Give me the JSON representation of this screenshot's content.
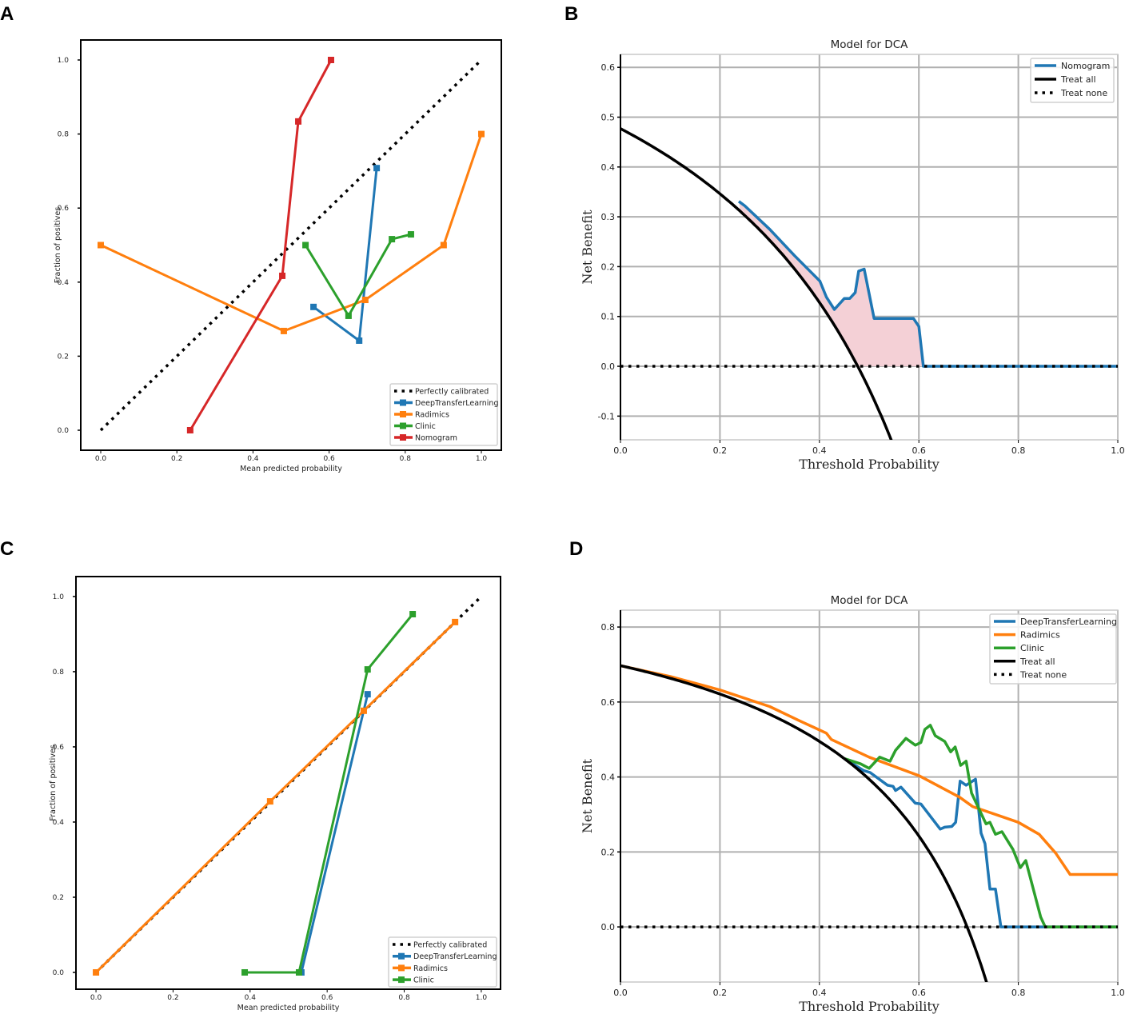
{
  "chart_data": [
    {
      "panel_label": "A",
      "type": "line",
      "title": "",
      "xlabel": "Mean predicted probability",
      "ylabel": "Fraction of positives",
      "xlim": [
        -0.0525,
        1.0525
      ],
      "ylim": [
        -0.054,
        1.054
      ],
      "xticks": [
        0.0,
        0.2,
        0.4,
        0.6,
        0.8,
        1.0
      ],
      "yticks": [
        0.0,
        0.2,
        0.4,
        0.6,
        0.8,
        1.0
      ],
      "grid": false,
      "legend": "lower-right",
      "series": [
        {
          "name": "Perfectly calibrated",
          "color": "#000000",
          "style": "dotted",
          "marker": "none",
          "x": [
            0,
            1
          ],
          "y": [
            0,
            1
          ]
        },
        {
          "name": "DeepTransferLearning",
          "color": "#1f77b4",
          "style": "solid",
          "marker": "square",
          "x": [
            0.559,
            0.679,
            0.725
          ],
          "y": [
            0.333,
            0.242,
            0.708
          ]
        },
        {
          "name": "Radimics",
          "color": "#ff7f0e",
          "style": "solid",
          "marker": "square",
          "x": [
            0.0,
            0.481,
            0.695,
            0.901,
            1.0
          ],
          "y": [
            0.5,
            0.268,
            0.352,
            0.5,
            0.8
          ]
        },
        {
          "name": "Clinic",
          "color": "#2ca02c",
          "style": "solid",
          "marker": "square",
          "x": [
            0.538,
            0.651,
            0.765,
            0.815
          ],
          "y": [
            0.5,
            0.309,
            0.516,
            0.529
          ]
        },
        {
          "name": "Nomogram",
          "color": "#d62728",
          "style": "solid",
          "marker": "square",
          "x": [
            0.235,
            0.477,
            0.519,
            0.605
          ],
          "y": [
            0.0,
            0.417,
            0.834,
            1.0
          ]
        }
      ]
    },
    {
      "panel_label": "B",
      "type": "line",
      "title": "Model for DCA",
      "xlabel": "Threshold Probability",
      "ylabel": "Net Benefit",
      "xlim": [
        0.0,
        1.0
      ],
      "ylim": [
        -0.1476,
        0.626
      ],
      "xticks": [
        0.0,
        0.2,
        0.4,
        0.6,
        0.8,
        1.0
      ],
      "yticks": [
        -0.1,
        0.0,
        0.1,
        0.2,
        0.3,
        0.4,
        0.5,
        0.6
      ],
      "grid": true,
      "legend": "top-right",
      "fill_between": {
        "series": "Nomogram",
        "color": "#f4d0d6"
      },
      "series": [
        {
          "name": "Nomogram",
          "color": "#1f77b4",
          "style": "solid",
          "x": [
            0.238,
            0.25,
            0.3,
            0.35,
            0.401,
            0.414,
            0.43,
            0.45,
            0.461,
            0.472,
            0.479,
            0.49,
            0.51,
            0.589,
            0.6,
            0.609,
            1.0
          ],
          "y": [
            0.331,
            0.322,
            0.275,
            0.222,
            0.171,
            0.139,
            0.114,
            0.136,
            0.136,
            0.148,
            0.191,
            0.195,
            0.096,
            0.096,
            0.08,
            0.0,
            0.0
          ]
        },
        {
          "name": "Treat all",
          "color": "#000000",
          "style": "solid",
          "prevalence": 0.477
        },
        {
          "name": "Treat none",
          "color": "#000000",
          "style": "dotted",
          "x": [
            0,
            1
          ],
          "y": [
            0,
            0
          ]
        }
      ]
    },
    {
      "panel_label": "C",
      "type": "line",
      "title": "",
      "xlabel": "Mean predicted probability",
      "ylabel": "Fraction of positives",
      "xlim": [
        -0.052,
        1.05
      ],
      "ylim": [
        -0.0447,
        1.053
      ],
      "xticks": [
        0.0,
        0.2,
        0.4,
        0.6,
        0.8,
        1.0
      ],
      "yticks": [
        0.0,
        0.2,
        0.4,
        0.6,
        0.8,
        1.0
      ],
      "grid": false,
      "legend": "lower-right",
      "series": [
        {
          "name": "Perfectly calibrated",
          "color": "#000000",
          "style": "dotted",
          "marker": "none",
          "x": [
            0,
            1
          ],
          "y": [
            0,
            1
          ]
        },
        {
          "name": "DeepTransferLearning",
          "color": "#1f77b4",
          "style": "solid",
          "marker": "square",
          "x": [
            0.533,
            0.705
          ],
          "y": [
            0.0,
            0.74
          ]
        },
        {
          "name": "Radimics",
          "color": "#ff7f0e",
          "style": "solid",
          "marker": "square",
          "x": [
            0.0,
            0.452,
            0.695,
            0.932
          ],
          "y": [
            0.0,
            0.455,
            0.696,
            0.932
          ]
        },
        {
          "name": "Clinic",
          "color": "#2ca02c",
          "style": "solid",
          "marker": "square",
          "x": [
            0.386,
            0.527,
            0.705,
            0.822
          ],
          "y": [
            0.0,
            0.0,
            0.806,
            0.953
          ]
        }
      ]
    },
    {
      "panel_label": "D",
      "type": "line",
      "title": "Model for DCA",
      "xlabel": "Threshold Probability",
      "ylabel": "Net Benefit",
      "xlim": [
        0.0,
        1.0
      ],
      "ylim": [
        -0.147,
        0.845
      ],
      "xticks": [
        0.0,
        0.2,
        0.4,
        0.6,
        0.8,
        1.0
      ],
      "yticks": [
        0.0,
        0.2,
        0.4,
        0.6,
        0.8
      ],
      "grid": true,
      "legend": "top-right",
      "series": [
        {
          "name": "DeepTransferLearning",
          "color": "#1f77b4",
          "style": "solid",
          "x": [
            0.45,
            0.489,
            0.502,
            0.537,
            0.548,
            0.553,
            0.564,
            0.593,
            0.604,
            0.643,
            0.652,
            0.666,
            0.674,
            0.683,
            0.695,
            0.714,
            0.725,
            0.733,
            0.743,
            0.754,
            0.765,
            1.0
          ],
          "y": [
            0.449,
            0.417,
            0.412,
            0.378,
            0.375,
            0.364,
            0.373,
            0.33,
            0.328,
            0.261,
            0.266,
            0.268,
            0.279,
            0.389,
            0.378,
            0.394,
            0.25,
            0.222,
            0.101,
            0.101,
            0.0,
            0.0
          ]
        },
        {
          "name": "Radimics",
          "color": "#ff7f0e",
          "style": "solid",
          "x": [
            0.0,
            0.1,
            0.2,
            0.3,
            0.36,
            0.414,
            0.424,
            0.5,
            0.601,
            0.682,
            0.708,
            0.8,
            0.842,
            0.875,
            0.904,
            1.0
          ],
          "y": [
            0.697,
            0.668,
            0.632,
            0.588,
            0.55,
            0.517,
            0.5,
            0.453,
            0.403,
            0.346,
            0.321,
            0.279,
            0.247,
            0.197,
            0.14,
            0.14
          ]
        },
        {
          "name": "Clinic",
          "color": "#2ca02c",
          "style": "solid",
          "x": [
            0.45,
            0.483,
            0.5,
            0.521,
            0.542,
            0.553,
            0.574,
            0.593,
            0.604,
            0.612,
            0.623,
            0.633,
            0.652,
            0.664,
            0.673,
            0.684,
            0.695,
            0.706,
            0.725,
            0.735,
            0.743,
            0.754,
            0.767,
            0.789,
            0.804,
            0.815,
            0.845,
            0.854,
            1.0
          ],
          "y": [
            0.449,
            0.435,
            0.423,
            0.453,
            0.442,
            0.471,
            0.503,
            0.485,
            0.492,
            0.527,
            0.538,
            0.51,
            0.495,
            0.467,
            0.48,
            0.431,
            0.442,
            0.357,
            0.303,
            0.275,
            0.279,
            0.247,
            0.254,
            0.207,
            0.158,
            0.177,
            0.026,
            0.0,
            0.0
          ]
        },
        {
          "name": "Treat all",
          "color": "#000000",
          "style": "solid",
          "prevalence": 0.697
        },
        {
          "name": "Treat none",
          "color": "#000000",
          "style": "dotted",
          "x": [
            0,
            1
          ],
          "y": [
            0,
            0
          ]
        }
      ]
    }
  ]
}
